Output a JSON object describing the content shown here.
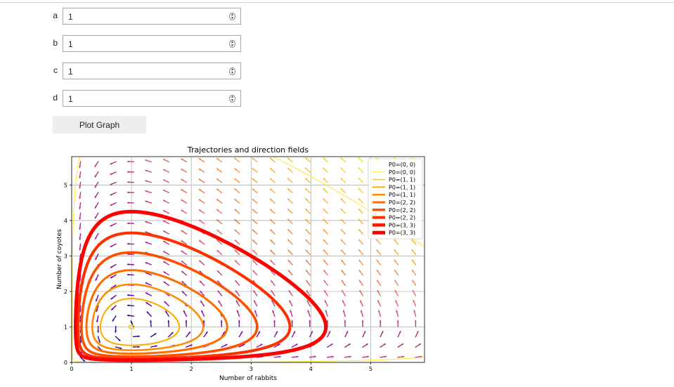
{
  "params": [
    {
      "label": "a",
      "value": "1"
    },
    {
      "label": "b",
      "value": "1"
    },
    {
      "label": "c",
      "value": "1"
    },
    {
      "label": "d",
      "value": "1"
    }
  ],
  "plot_button": {
    "label": "Plot Graph"
  },
  "chart_data": {
    "type": "line",
    "title": "Trajectories and direction fields",
    "xlabel": "Number of rabbits",
    "ylabel": "Number of coyotes",
    "xlim": [
      0,
      5.9
    ],
    "ylim": [
      0,
      5.8
    ],
    "xticks": [
      0,
      1,
      2,
      3,
      4,
      5
    ],
    "yticks": [
      0,
      1,
      2,
      3,
      4,
      5
    ],
    "grid": true,
    "legend_placement": "top-right",
    "model": {
      "rabbit_rate": 1,
      "predation": 1,
      "coyote_death": 1,
      "conversion": 1
    },
    "quiver_colormap": "plasma",
    "series": [
      {
        "name": "P0=(0, 0)",
        "x0": 0.1,
        "y0": 5.5,
        "color": "#fff799",
        "width": 0.5
      },
      {
        "name": "P0=(0, 0)",
        "x0": 0.1,
        "y0": 5.5,
        "color": "#ffe838",
        "width": 1.0
      },
      {
        "name": "P0=(1, 1)",
        "x0": 1.0,
        "y0": 1.05,
        "color": "#ffcd00",
        "width": 1.5
      },
      {
        "name": "P0=(1, 1)",
        "x0": 1.0,
        "y0": 1.8,
        "color": "#ffaa00",
        "width": 2.0
      },
      {
        "name": "P0=(1, 1)",
        "x0": 1.0,
        "y0": 2.2,
        "color": "#ff8c00",
        "width": 2.5
      },
      {
        "name": "P0=(2, 2)",
        "x0": 1.0,
        "y0": 2.6,
        "color": "#ff6d00",
        "width": 3.0
      },
      {
        "name": "P0=(2, 2)",
        "x0": 1.0,
        "y0": 3.1,
        "color": "#ff4e00",
        "width": 3.5
      },
      {
        "name": "P0=(2, 2)",
        "x0": 1.0,
        "y0": 3.65,
        "color": "#ff3000",
        "width": 4.0
      },
      {
        "name": "P0=(3, 3)",
        "x0": 1.0,
        "y0": 4.25,
        "color": "#ff1400",
        "width": 4.5
      },
      {
        "name": "P0=(3, 3)",
        "x0": 1.0,
        "y0": 4.25,
        "color": "#ff0000",
        "width": 5.0
      }
    ]
  }
}
